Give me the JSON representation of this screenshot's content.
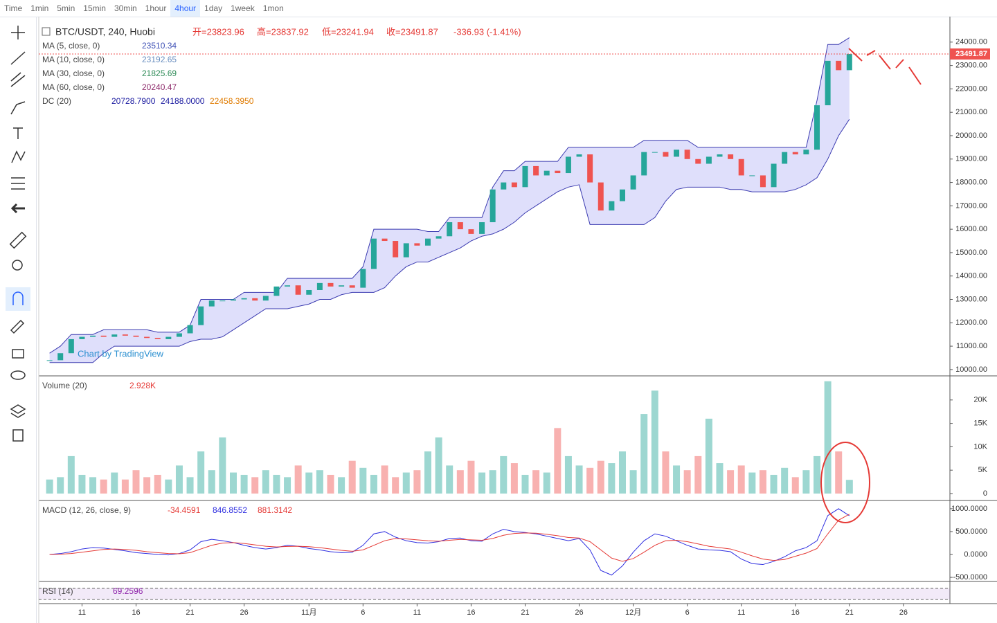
{
  "toolbar": {
    "intervals": [
      "Time",
      "1min",
      "5min",
      "15min",
      "30min",
      "1hour",
      "4hour",
      "1day",
      "1week",
      "1mon"
    ]
  },
  "chart_data": [
    {
      "type": "candlestick",
      "title": "BTC/USDT, 240, Huobi",
      "ohlc": [
        "开=23823.96",
        "高=23837.92",
        "低=23241.94",
        "收=23491.87",
        "-336.93 (-1.41%)"
      ],
      "indicators": [
        {
          "name": "MA (5, close, 0)",
          "value": "23510.34"
        },
        {
          "name": "MA (10, close, 0)",
          "value": "23192.65"
        },
        {
          "name": "MA (30, close, 0)",
          "value": "21825.69"
        },
        {
          "name": "MA (60, close, 0)",
          "value": "20240.47"
        }
      ],
      "dc": {
        "name": "DC (20)",
        "values": [
          "20728.7900",
          "24188.0000",
          "22458.3950"
        ]
      },
      "watermark": "Chart by TradingView",
      "x": [
        8,
        9,
        10,
        11,
        12,
        13,
        14,
        15,
        16,
        17,
        18,
        19,
        20,
        21,
        22,
        23,
        24,
        25,
        26,
        27,
        28,
        29,
        30,
        31,
        32,
        33,
        34,
        35,
        36,
        37,
        38,
        39,
        40,
        41,
        42,
        43,
        44,
        45,
        46,
        47,
        48,
        49,
        50,
        51,
        52,
        53,
        54,
        55,
        56,
        57,
        58,
        59,
        60,
        61,
        62,
        63,
        64,
        65,
        66,
        67,
        68,
        69,
        70,
        71,
        72,
        73,
        74,
        75,
        76,
        77,
        78,
        79,
        80,
        81,
        82
      ],
      "values": [
        10400,
        10700,
        11300,
        11400,
        11450,
        11400,
        11500,
        11450,
        11400,
        11350,
        11300,
        11400,
        11550,
        11900,
        12700,
        12950,
        12950,
        13000,
        13050,
        12950,
        13150,
        13550,
        13600,
        13200,
        13400,
        13700,
        13550,
        13600,
        13500,
        14300,
        15600,
        15500,
        14800,
        15400,
        15300,
        15600,
        15700,
        16300,
        16000,
        15800,
        16300,
        17700,
        18000,
        17800,
        18700,
        18300,
        18500,
        18400,
        19100,
        19200,
        18000,
        16800,
        17200,
        17700,
        18300,
        19300,
        19300,
        19100,
        19400,
        19000,
        18800,
        19100,
        19200,
        19000,
        18300,
        18300,
        17800,
        18800,
        19300,
        19200,
        19400,
        21300,
        23200,
        22800,
        23491.87
      ],
      "up_color": "#26a69a",
      "down_color": "#ef5350",
      "donchian": {
        "color": "#3a3ab0",
        "upper": [
          10700,
          11000,
          11500,
          11500,
          11500,
          11700,
          11700,
          11700,
          11700,
          11700,
          11600,
          11600,
          11600,
          11900,
          13000,
          13000,
          13000,
          13000,
          13300,
          13300,
          13300,
          13300,
          13900,
          13900,
          13900,
          13900,
          13900,
          13900,
          13900,
          14400,
          16000,
          16000,
          16000,
          16000,
          16000,
          15900,
          15900,
          16500,
          16500,
          16500,
          16500,
          17800,
          18500,
          18500,
          18900,
          18900,
          18900,
          18900,
          19500,
          19500,
          19500,
          19500,
          19500,
          19500,
          19500,
          19800,
          19800,
          19800,
          19800,
          19800,
          19500,
          19500,
          19500,
          19500,
          19500,
          19500,
          19500,
          19500,
          19500,
          19500,
          19500,
          21500,
          23900,
          23900,
          24188
        ],
        "lower": [
          10300,
          10300,
          10300,
          10300,
          10300,
          10700,
          11000,
          11000,
          11000,
          11000,
          11000,
          11000,
          11000,
          11200,
          11300,
          11300,
          11400,
          11700,
          12000,
          12300,
          12600,
          12600,
          12600,
          12700,
          12800,
          13000,
          13000,
          13200,
          13300,
          13300,
          13300,
          13500,
          14000,
          14400,
          14600,
          14600,
          14800,
          15000,
          15200,
          15500,
          15700,
          15800,
          16000,
          16300,
          16700,
          17000,
          17300,
          17600,
          17800,
          17900,
          16200,
          16200,
          16200,
          16200,
          16200,
          16200,
          16500,
          17200,
          17700,
          17800,
          17800,
          17800,
          17800,
          17700,
          17700,
          17600,
          17600,
          17600,
          17600,
          17700,
          17900,
          18200,
          19000,
          20000,
          20700
        ]
      },
      "last_price": 23491.87,
      "ylim": [
        9730,
        25090
      ],
      "yticks": [
        {
          "value": 24000,
          "label": "24000.00"
        },
        {
          "value": 23000,
          "label": "23000.00"
        },
        {
          "value": 22000,
          "label": "22000.00"
        },
        {
          "value": 21000,
          "label": "21000.00"
        },
        {
          "value": 20000,
          "label": "20000.00"
        },
        {
          "value": 19000,
          "label": "19000.00"
        },
        {
          "value": 18000,
          "label": "18000.00"
        },
        {
          "value": 17000,
          "label": "17000.00"
        },
        {
          "value": 16000,
          "label": "16000.00"
        },
        {
          "value": 15000,
          "label": "15000.00"
        },
        {
          "value": 14000,
          "label": "14000.00"
        },
        {
          "value": 13000,
          "label": "13000.00"
        },
        {
          "value": 12000,
          "label": "12000.00"
        },
        {
          "value": 11000,
          "label": "11000.00"
        },
        {
          "value": 10000,
          "label": "10000.00"
        }
      ],
      "xlim": [
        7,
        91.3
      ],
      "xticks": [
        {
          "value": 11,
          "label": "11"
        },
        {
          "value": 16,
          "label": "16"
        },
        {
          "value": 21,
          "label": "21"
        },
        {
          "value": 26,
          "label": "26"
        },
        {
          "value": 32,
          "label": "11月"
        },
        {
          "value": 37,
          "label": "6"
        },
        {
          "value": 42,
          "label": "11"
        },
        {
          "value": 47,
          "label": "16"
        },
        {
          "value": 52,
          "label": "21"
        },
        {
          "value": 57,
          "label": "26"
        },
        {
          "value": 62,
          "label": "12月"
        },
        {
          "value": 67,
          "label": "6"
        },
        {
          "value": 72,
          "label": "11"
        },
        {
          "value": 77,
          "label": "16"
        },
        {
          "value": 82,
          "label": "21"
        },
        {
          "value": 87,
          "label": "26"
        }
      ]
    },
    {
      "type": "bar",
      "title": "Volume (20)",
      "legend_value": "2.928K",
      "values": [
        3000,
        3500,
        8000,
        4000,
        3500,
        3000,
        4500,
        3000,
        5000,
        3500,
        4000,
        3000,
        6000,
        3500,
        9000,
        5000,
        12000,
        4500,
        4000,
        3500,
        5000,
        4000,
        3500,
        6000,
        4500,
        5000,
        4000,
        3500,
        7000,
        5500,
        4000,
        6000,
        3500,
        4500,
        5000,
        9000,
        12000,
        6000,
        5000,
        7000,
        4500,
        5000,
        8000,
        6500,
        4000,
        5000,
        4500,
        14000,
        8000,
        6000,
        5500,
        7000,
        6500,
        9000,
        5000,
        17000,
        22000,
        9000,
        6000,
        5000,
        8000,
        16000,
        6500,
        5000,
        6000,
        4500,
        5000,
        4000,
        5500,
        3500,
        5000,
        8000,
        24000,
        9000,
        2928
      ],
      "ylim": [
        -1480,
        25000
      ],
      "yticks": [
        {
          "value": 20000,
          "label": "20K"
        },
        {
          "value": 15000,
          "label": "15K"
        },
        {
          "value": 10000,
          "label": "10K"
        },
        {
          "value": 5000,
          "label": "5K"
        },
        0
      ]
    },
    {
      "type": "line",
      "title": "MACD (12, 26, close, 9)",
      "legend_values": [
        "-34.4591",
        "846.8552",
        "881.3142"
      ],
      "series": [
        {
          "color": "#2e2ee0",
          "values": [
            0,
            20,
            60,
            120,
            150,
            140,
            110,
            80,
            40,
            20,
            0,
            -10,
            20,
            100,
            280,
            330,
            300,
            260,
            200,
            150,
            120,
            150,
            200,
            180,
            130,
            100,
            60,
            40,
            50,
            200,
            450,
            500,
            380,
            300,
            260,
            250,
            280,
            350,
            360,
            300,
            290,
            450,
            550,
            500,
            480,
            450,
            400,
            350,
            300,
            350,
            100,
            -350,
            -450,
            -250,
            50,
            300,
            450,
            400,
            300,
            200,
            120,
            100,
            90,
            60,
            -100,
            -200,
            -220,
            -150,
            -50,
            80,
            150,
            300,
            850,
            1000,
            847
          ]
        },
        {
          "color": "#e53935",
          "values": [
            0,
            5,
            20,
            50,
            80,
            110,
            120,
            110,
            90,
            60,
            40,
            20,
            15,
            40,
            120,
            200,
            250,
            260,
            240,
            210,
            180,
            165,
            175,
            180,
            170,
            150,
            120,
            90,
            70,
            100,
            200,
            300,
            350,
            340,
            320,
            300,
            290,
            310,
            330,
            320,
            310,
            350,
            420,
            460,
            470,
            465,
            440,
            410,
            370,
            360,
            280,
            100,
            -80,
            -150,
            -90,
            50,
            200,
            300,
            310,
            280,
            230,
            180,
            150,
            120,
            50,
            -30,
            -100,
            -130,
            -110,
            -40,
            30,
            130,
            450,
            750,
            881
          ]
        }
      ],
      "ylim": [
        -590,
        1165
      ],
      "yticks": [
        {
          "value": 1000,
          "label": "1000.0000"
        },
        {
          "value": 500,
          "label": "500.0000"
        },
        {
          "value": 0,
          "label": "0.0000"
        },
        {
          "value": -500,
          "label": "-500.0000"
        }
      ]
    },
    {
      "type": "rsi",
      "title": "RSI (14)",
      "legend_value": "69.2596"
    }
  ]
}
